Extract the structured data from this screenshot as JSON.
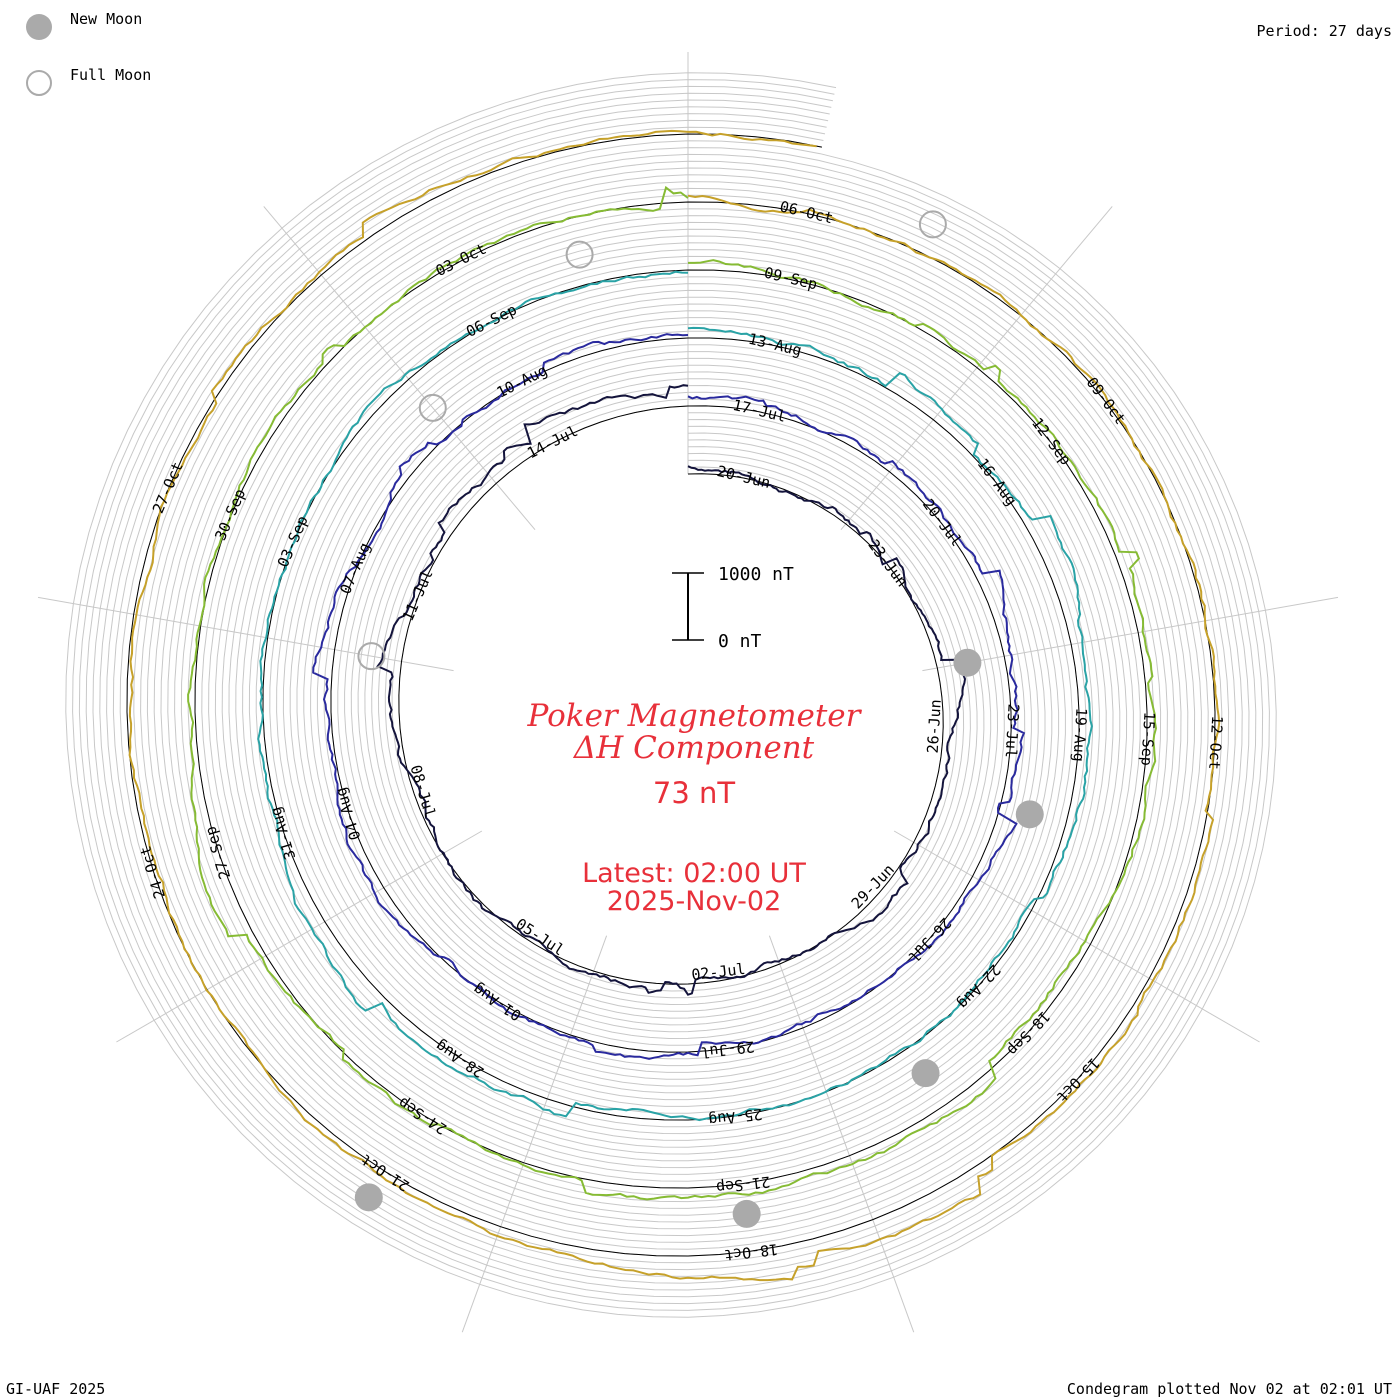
{
  "legend": {
    "new_moon": {
      "label": "New Moon",
      "color": "#aaaaaa"
    },
    "full_moon": {
      "label": "Full Moon",
      "color": "#aaaaaa"
    }
  },
  "period_label": "Period: 27 days",
  "footer": {
    "left": "GI-UAF 2025",
    "right": "Condegram plotted Nov 02 at 02:01 UT"
  },
  "center": {
    "title_line1": "Poker Magnetometer",
    "title_line2": "ΔH Component",
    "current_value": "73 nT",
    "latest_time": "Latest: 02:00 UT",
    "latest_date": "2025-Nov-02"
  },
  "scale_bar": {
    "top_label": "1000 nT",
    "bottom_label": "0 nT"
  },
  "chart_data": {
    "type": "line",
    "period_days": 27,
    "units": "nT",
    "series": [
      {
        "color": "#14143c",
        "start": "2025-06-19",
        "end": "2025-07-16"
      },
      {
        "color": "#2a2a9e",
        "start": "2025-07-16",
        "end": "2025-08-12"
      },
      {
        "color": "#2aa3a6",
        "start": "2025-08-12",
        "end": "2025-09-08"
      },
      {
        "color": "#86bb34",
        "start": "2025-09-08",
        "end": "2025-10-05"
      },
      {
        "color": "#c6a12a",
        "start": "2025-10-05",
        "end": "2025-11-02"
      }
    ],
    "date_labels": [
      {
        "label": "20-Jun",
        "ring": 0
      },
      {
        "label": "23-Jun",
        "ring": 0
      },
      {
        "label": "26-Jun",
        "ring": 0
      },
      {
        "label": "29-Jun",
        "ring": 0
      },
      {
        "label": "02-Jul",
        "ring": 0
      },
      {
        "label": "05-Jul",
        "ring": 0
      },
      {
        "label": "08-Jul",
        "ring": 0
      },
      {
        "label": "11-Jul",
        "ring": 0
      },
      {
        "label": "14-Jul",
        "ring": 0
      },
      {
        "label": "17-Jul",
        "ring": 1
      },
      {
        "label": "20-Jul",
        "ring": 1
      },
      {
        "label": "23-Jul",
        "ring": 1
      },
      {
        "label": "26-Jul",
        "ring": 1
      },
      {
        "label": "29-Jul",
        "ring": 1
      },
      {
        "label": "01-Aug",
        "ring": 1
      },
      {
        "label": "04-Aug",
        "ring": 1
      },
      {
        "label": "07-Aug",
        "ring": 1
      },
      {
        "label": "10-Aug",
        "ring": 1
      },
      {
        "label": "13-Aug",
        "ring": 2
      },
      {
        "label": "16-Aug",
        "ring": 2
      },
      {
        "label": "19-Aug",
        "ring": 2
      },
      {
        "label": "22-Aug",
        "ring": 2
      },
      {
        "label": "25-Aug",
        "ring": 2
      },
      {
        "label": "28-Aug",
        "ring": 2
      },
      {
        "label": "31-Aug",
        "ring": 2
      },
      {
        "label": "03-Sep",
        "ring": 2
      },
      {
        "label": "06-Sep",
        "ring": 2
      },
      {
        "label": "09-Sep",
        "ring": 3
      },
      {
        "label": "12-Sep",
        "ring": 3
      },
      {
        "label": "15-Sep",
        "ring": 3
      },
      {
        "label": "18-Sep",
        "ring": 3
      },
      {
        "label": "21-Sep",
        "ring": 3
      },
      {
        "label": "24-Sep",
        "ring": 3
      },
      {
        "label": "27-Sep",
        "ring": 3
      },
      {
        "label": "30-Sep",
        "ring": 3
      },
      {
        "label": "03-Oct",
        "ring": 3
      },
      {
        "label": "06-Oct",
        "ring": 4
      },
      {
        "label": "09-Oct",
        "ring": 4
      },
      {
        "label": "12-Oct",
        "ring": 4
      },
      {
        "label": "15-Oct",
        "ring": 4
      },
      {
        "label": "18-Oct",
        "ring": 4
      },
      {
        "label": "21-Oct",
        "ring": 4
      },
      {
        "label": "24-Oct",
        "ring": 4
      },
      {
        "label": "27-Oct",
        "ring": 4
      }
    ],
    "new_moons": [
      "2025-06-25",
      "2025-07-24",
      "2025-08-23",
      "2025-09-21",
      "2025-10-21"
    ],
    "full_moons": [
      "2025-07-10",
      "2025-08-09",
      "2025-09-07",
      "2025-10-07"
    ]
  }
}
